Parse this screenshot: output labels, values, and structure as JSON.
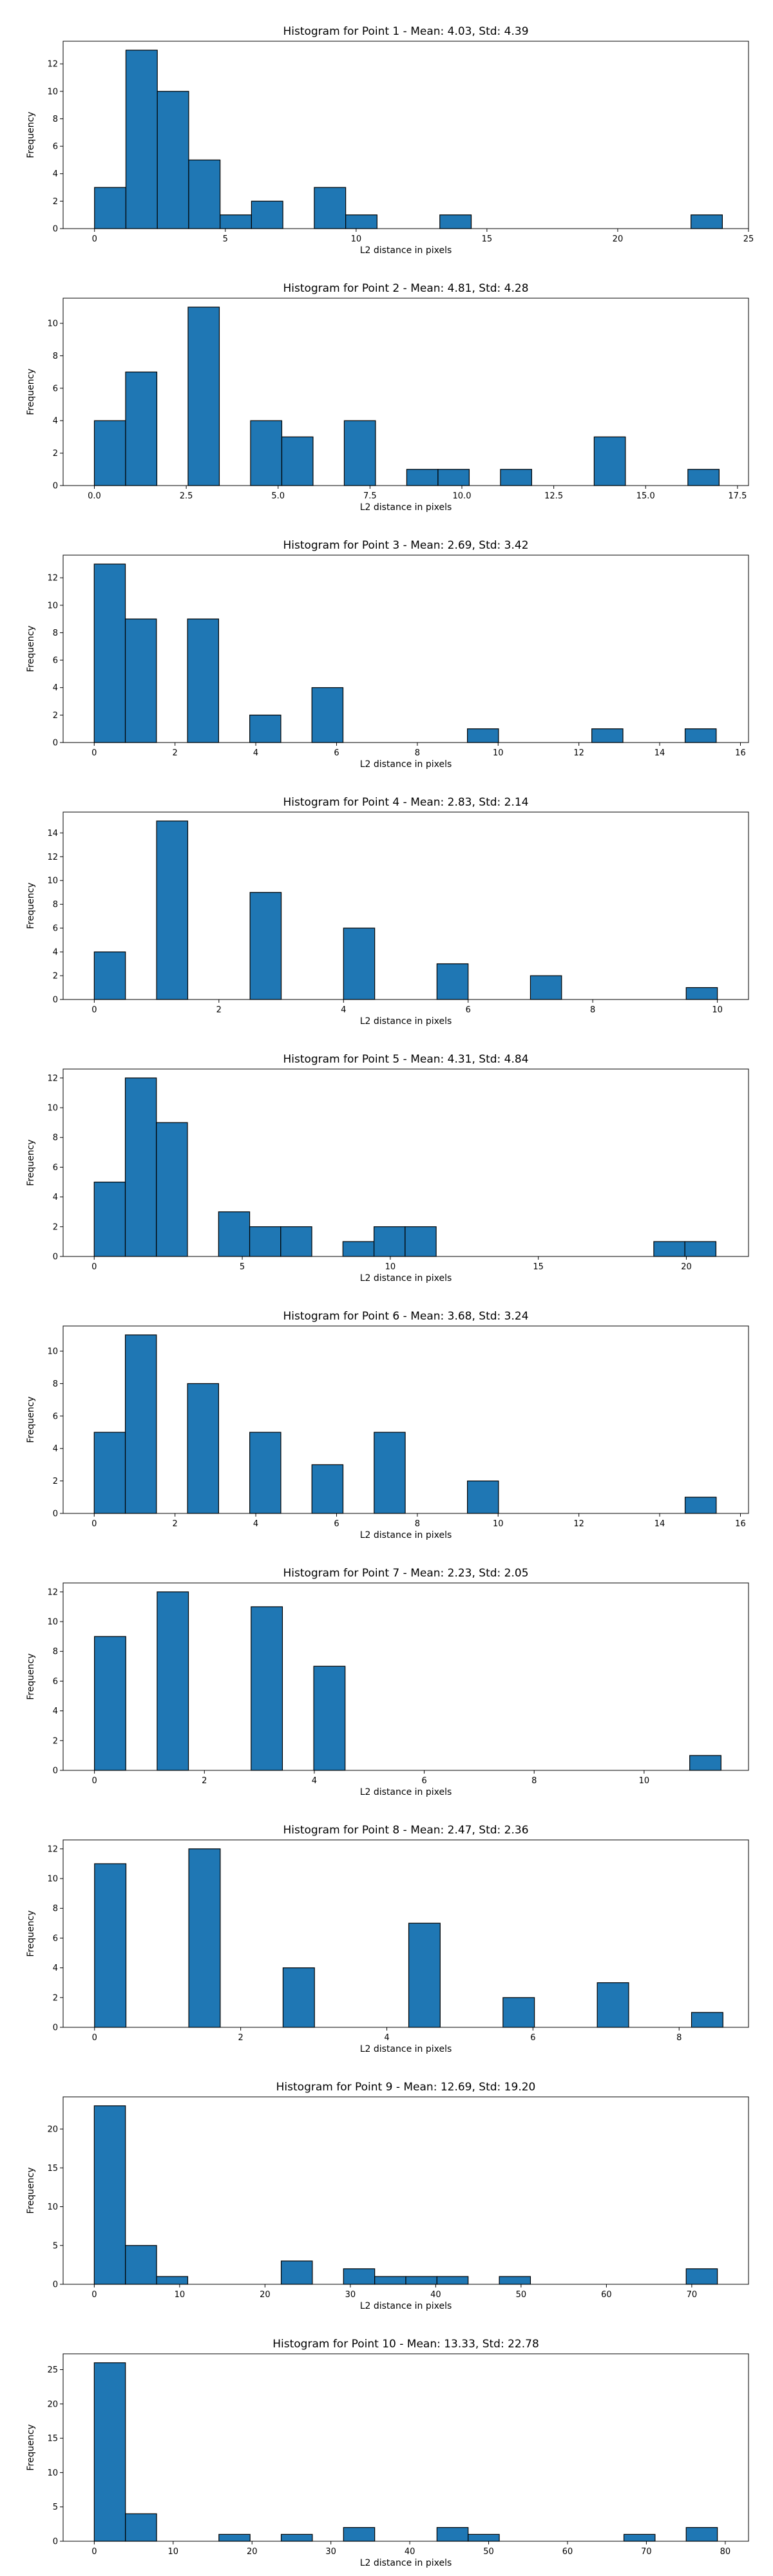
{
  "figure": {
    "background": "#ffffff"
  },
  "style": {
    "bar_fill": "#1f77b4",
    "bar_edge": "#000000"
  },
  "chart_data": [
    {
      "type": "bar",
      "title": "Histogram for Point 1 - Mean: 4.03, Std: 4.39",
      "xlabel": "L2 distance in pixels",
      "ylabel": "Frequency",
      "xlim": [
        -1.2,
        25
      ],
      "ylim": [
        0,
        13.65
      ],
      "xticks": [
        0,
        5,
        10,
        15,
        20,
        25
      ],
      "xtick_labels": [
        "0",
        "5",
        "10",
        "15",
        "20",
        "25"
      ],
      "yticks": [
        0,
        2,
        4,
        6,
        8,
        10,
        12
      ],
      "ytick_labels": [
        "0",
        "2",
        "4",
        "6",
        "8",
        "10",
        "12"
      ],
      "bins": [
        {
          "x0": 0,
          "x1": 1.2,
          "value": 3
        },
        {
          "x0": 1.2,
          "x1": 2.4,
          "value": 13
        },
        {
          "x0": 2.4,
          "x1": 3.6,
          "value": 10
        },
        {
          "x0": 3.6,
          "x1": 4.8,
          "value": 5
        },
        {
          "x0": 4.8,
          "x1": 6.0,
          "value": 1
        },
        {
          "x0": 6.0,
          "x1": 7.2,
          "value": 2
        },
        {
          "x0": 8.4,
          "x1": 9.6,
          "value": 3
        },
        {
          "x0": 9.6,
          "x1": 10.8,
          "value": 1
        },
        {
          "x0": 13.2,
          "x1": 14.4,
          "value": 1
        },
        {
          "x0": 22.8,
          "x1": 24.0,
          "value": 1
        }
      ]
    },
    {
      "type": "bar",
      "title": "Histogram for Point 2 - Mean: 4.81, Std: 4.28",
      "xlabel": "L2 distance in pixels",
      "ylabel": "Frequency",
      "xlim": [
        -0.85,
        17.8
      ],
      "ylim": [
        0,
        11.55
      ],
      "xticks": [
        0,
        2.5,
        5,
        7.5,
        10,
        12.5,
        15,
        17.5
      ],
      "xtick_labels": [
        "0.0",
        "2.5",
        "5.0",
        "7.5",
        "10.0",
        "12.5",
        "15.0",
        "17.5"
      ],
      "yticks": [
        0,
        2,
        4,
        6,
        8,
        10
      ],
      "ytick_labels": [
        "0",
        "2",
        "4",
        "6",
        "8",
        "10"
      ],
      "bins": [
        {
          "x0": 0,
          "x1": 0.85,
          "value": 4
        },
        {
          "x0": 0.85,
          "x1": 1.7,
          "value": 7
        },
        {
          "x0": 2.55,
          "x1": 3.4,
          "value": 11
        },
        {
          "x0": 4.25,
          "x1": 5.1,
          "value": 4
        },
        {
          "x0": 5.1,
          "x1": 5.95,
          "value": 3
        },
        {
          "x0": 6.8,
          "x1": 7.65,
          "value": 4
        },
        {
          "x0": 8.5,
          "x1": 9.35,
          "value": 1
        },
        {
          "x0": 9.35,
          "x1": 10.2,
          "value": 1
        },
        {
          "x0": 11.05,
          "x1": 11.9,
          "value": 1
        },
        {
          "x0": 13.6,
          "x1": 14.45,
          "value": 3
        },
        {
          "x0": 16.15,
          "x1": 17.0,
          "value": 1
        }
      ]
    },
    {
      "type": "bar",
      "title": "Histogram for Point 3 - Mean: 2.69, Std: 3.42",
      "xlabel": "L2 distance in pixels",
      "ylabel": "Frequency",
      "xlim": [
        -0.77,
        16.2
      ],
      "ylim": [
        0,
        13.65
      ],
      "xticks": [
        0,
        2,
        4,
        6,
        8,
        10,
        12,
        14,
        16
      ],
      "xtick_labels": [
        "0",
        "2",
        "4",
        "6",
        "8",
        "10",
        "12",
        "14",
        "16"
      ],
      "yticks": [
        0,
        2,
        4,
        6,
        8,
        10,
        12
      ],
      "ytick_labels": [
        "0",
        "2",
        "4",
        "6",
        "8",
        "10",
        "12"
      ],
      "bins": [
        {
          "x0": 0,
          "x1": 0.77,
          "value": 13
        },
        {
          "x0": 0.77,
          "x1": 1.54,
          "value": 9
        },
        {
          "x0": 2.31,
          "x1": 3.08,
          "value": 9
        },
        {
          "x0": 3.85,
          "x1": 4.62,
          "value": 2
        },
        {
          "x0": 5.39,
          "x1": 6.16,
          "value": 4
        },
        {
          "x0": 9.24,
          "x1": 10.01,
          "value": 1
        },
        {
          "x0": 12.32,
          "x1": 13.09,
          "value": 1
        },
        {
          "x0": 14.63,
          "x1": 15.4,
          "value": 1
        }
      ]
    },
    {
      "type": "bar",
      "title": "Histogram for Point 4 - Mean: 2.83, Std: 2.14",
      "xlabel": "L2 distance in pixels",
      "ylabel": "Frequency",
      "xlim": [
        -0.5,
        10.5
      ],
      "ylim": [
        0,
        15.75
      ],
      "xticks": [
        0,
        2,
        4,
        6,
        8,
        10
      ],
      "xtick_labels": [
        "0",
        "2",
        "4",
        "6",
        "8",
        "10"
      ],
      "yticks": [
        0,
        2,
        4,
        6,
        8,
        10,
        12,
        14
      ],
      "ytick_labels": [
        "0",
        "2",
        "4",
        "6",
        "8",
        "10",
        "12",
        "14"
      ],
      "bins": [
        {
          "x0": 0,
          "x1": 0.5,
          "value": 4
        },
        {
          "x0": 1.0,
          "x1": 1.5,
          "value": 15
        },
        {
          "x0": 2.5,
          "x1": 3.0,
          "value": 9
        },
        {
          "x0": 4.0,
          "x1": 4.5,
          "value": 6
        },
        {
          "x0": 5.5,
          "x1": 6.0,
          "value": 3
        },
        {
          "x0": 7.0,
          "x1": 7.5,
          "value": 2
        },
        {
          "x0": 9.5,
          "x1": 10.0,
          "value": 1
        }
      ]
    },
    {
      "type": "bar",
      "title": "Histogram for Point 5 - Mean: 4.31, Std: 4.84",
      "xlabel": "L2 distance in pixels",
      "ylabel": "Frequency",
      "xlim": [
        -1.05,
        22.1
      ],
      "ylim": [
        0,
        12.6
      ],
      "xticks": [
        0,
        5,
        10,
        15,
        20
      ],
      "xtick_labels": [
        "0",
        "5",
        "10",
        "15",
        "20"
      ],
      "yticks": [
        0,
        2,
        4,
        6,
        8,
        10,
        12
      ],
      "ytick_labels": [
        "0",
        "2",
        "4",
        "6",
        "8",
        "10",
        "12"
      ],
      "bins": [
        {
          "x0": 0,
          "x1": 1.05,
          "value": 5
        },
        {
          "x0": 1.05,
          "x1": 2.1,
          "value": 12
        },
        {
          "x0": 2.1,
          "x1": 3.15,
          "value": 9
        },
        {
          "x0": 4.2,
          "x1": 5.25,
          "value": 3
        },
        {
          "x0": 5.25,
          "x1": 6.3,
          "value": 2
        },
        {
          "x0": 6.3,
          "x1": 7.35,
          "value": 2
        },
        {
          "x0": 8.4,
          "x1": 9.45,
          "value": 1
        },
        {
          "x0": 9.45,
          "x1": 10.5,
          "value": 2
        },
        {
          "x0": 10.5,
          "x1": 11.55,
          "value": 2
        },
        {
          "x0": 18.9,
          "x1": 19.95,
          "value": 1
        },
        {
          "x0": 19.95,
          "x1": 21.0,
          "value": 1
        }
      ]
    },
    {
      "type": "bar",
      "title": "Histogram for Point 6 - Mean: 3.68, Std: 3.24",
      "xlabel": "L2 distance in pixels",
      "ylabel": "Frequency",
      "xlim": [
        -0.77,
        16.2
      ],
      "ylim": [
        0,
        11.55
      ],
      "xticks": [
        0,
        2,
        4,
        6,
        8,
        10,
        12,
        14,
        16
      ],
      "xtick_labels": [
        "0",
        "2",
        "4",
        "6",
        "8",
        "10",
        "12",
        "14",
        "16"
      ],
      "yticks": [
        0,
        2,
        4,
        6,
        8,
        10
      ],
      "ytick_labels": [
        "0",
        "2",
        "4",
        "6",
        "8",
        "10"
      ],
      "bins": [
        {
          "x0": 0,
          "x1": 0.77,
          "value": 5
        },
        {
          "x0": 0.77,
          "x1": 1.54,
          "value": 11
        },
        {
          "x0": 2.31,
          "x1": 3.08,
          "value": 8
        },
        {
          "x0": 3.85,
          "x1": 4.62,
          "value": 5
        },
        {
          "x0": 5.39,
          "x1": 6.16,
          "value": 3
        },
        {
          "x0": 6.93,
          "x1": 7.7,
          "value": 5
        },
        {
          "x0": 9.24,
          "x1": 10.01,
          "value": 2
        },
        {
          "x0": 14.63,
          "x1": 15.4,
          "value": 1
        }
      ]
    },
    {
      "type": "bar",
      "title": "Histogram for Point 7 - Mean: 2.23, Std: 2.05",
      "xlabel": "L2 distance in pixels",
      "ylabel": "Frequency",
      "xlim": [
        -0.57,
        11.9
      ],
      "ylim": [
        0,
        12.6
      ],
      "xticks": [
        0,
        2,
        4,
        6,
        8,
        10
      ],
      "xtick_labels": [
        "0",
        "2",
        "4",
        "6",
        "8",
        "10"
      ],
      "yticks": [
        0,
        2,
        4,
        6,
        8,
        10,
        12
      ],
      "ytick_labels": [
        "0",
        "2",
        "4",
        "6",
        "8",
        "10",
        "12"
      ],
      "bins": [
        {
          "x0": 0,
          "x1": 0.57,
          "value": 9
        },
        {
          "x0": 1.14,
          "x1": 1.71,
          "value": 12
        },
        {
          "x0": 2.85,
          "x1": 3.42,
          "value": 11
        },
        {
          "x0": 3.99,
          "x1": 4.56,
          "value": 7
        },
        {
          "x0": 10.83,
          "x1": 11.4,
          "value": 1
        }
      ]
    },
    {
      "type": "bar",
      "title": "Histogram for Point 8 - Mean: 2.47, Std: 2.36",
      "xlabel": "L2 distance in pixels",
      "ylabel": "Frequency",
      "xlim": [
        -0.43,
        8.95
      ],
      "ylim": [
        0,
        12.6
      ],
      "xticks": [
        0,
        2,
        4,
        6,
        8
      ],
      "xtick_labels": [
        "0",
        "2",
        "4",
        "6",
        "8"
      ],
      "yticks": [
        0,
        2,
        4,
        6,
        8,
        10,
        12
      ],
      "ytick_labels": [
        "0",
        "2",
        "4",
        "6",
        "8",
        "10",
        "12"
      ],
      "bins": [
        {
          "x0": 0,
          "x1": 0.43,
          "value": 11
        },
        {
          "x0": 1.29,
          "x1": 1.72,
          "value": 12
        },
        {
          "x0": 2.58,
          "x1": 3.01,
          "value": 4
        },
        {
          "x0": 4.3,
          "x1": 4.73,
          "value": 7
        },
        {
          "x0": 5.59,
          "x1": 6.02,
          "value": 2
        },
        {
          "x0": 6.88,
          "x1": 7.31,
          "value": 3
        },
        {
          "x0": 8.17,
          "x1": 8.6,
          "value": 1
        }
      ]
    },
    {
      "type": "bar",
      "title": "Histogram for Point 9 - Mean: 12.69, Std: 19.20",
      "xlabel": "L2 distance in pixels",
      "ylabel": "Frequency",
      "xlim": [
        -3.65,
        76.65
      ],
      "ylim": [
        0,
        24.15
      ],
      "xticks": [
        0,
        10,
        20,
        30,
        40,
        50,
        60,
        70
      ],
      "xtick_labels": [
        "0",
        "10",
        "20",
        "30",
        "40",
        "50",
        "60",
        "70"
      ],
      "yticks": [
        0,
        5,
        10,
        15,
        20
      ],
      "ytick_labels": [
        "0",
        "5",
        "10",
        "15",
        "20"
      ],
      "bins": [
        {
          "x0": 0,
          "x1": 3.65,
          "value": 23
        },
        {
          "x0": 3.65,
          "x1": 7.3,
          "value": 5
        },
        {
          "x0": 7.3,
          "x1": 10.95,
          "value": 1
        },
        {
          "x0": 21.9,
          "x1": 25.55,
          "value": 3
        },
        {
          "x0": 29.2,
          "x1": 32.85,
          "value": 2
        },
        {
          "x0": 32.85,
          "x1": 36.5,
          "value": 1
        },
        {
          "x0": 36.5,
          "x1": 40.15,
          "value": 1
        },
        {
          "x0": 40.15,
          "x1": 43.8,
          "value": 1
        },
        {
          "x0": 47.45,
          "x1": 51.1,
          "value": 1
        },
        {
          "x0": 69.35,
          "x1": 73.0,
          "value": 2
        }
      ]
    },
    {
      "type": "bar",
      "title": "Histogram for Point 10 - Mean: 13.33, Std: 22.78",
      "xlabel": "L2 distance in pixels",
      "ylabel": "Frequency",
      "xlim": [
        -3.95,
        82.95
      ],
      "ylim": [
        0,
        27.3
      ],
      "xticks": [
        0,
        10,
        20,
        30,
        40,
        50,
        60,
        70,
        80
      ],
      "xtick_labels": [
        "0",
        "10",
        "20",
        "30",
        "40",
        "50",
        "60",
        "70",
        "80"
      ],
      "yticks": [
        0,
        5,
        10,
        15,
        20,
        25
      ],
      "ytick_labels": [
        "0",
        "5",
        "10",
        "15",
        "20",
        "25"
      ],
      "bins": [
        {
          "x0": 0,
          "x1": 3.95,
          "value": 26
        },
        {
          "x0": 3.95,
          "x1": 7.9,
          "value": 4
        },
        {
          "x0": 15.8,
          "x1": 19.75,
          "value": 1
        },
        {
          "x0": 23.7,
          "x1": 27.65,
          "value": 1
        },
        {
          "x0": 31.6,
          "x1": 35.55,
          "value": 2
        },
        {
          "x0": 43.45,
          "x1": 47.4,
          "value": 2
        },
        {
          "x0": 47.4,
          "x1": 51.35,
          "value": 1
        },
        {
          "x0": 67.15,
          "x1": 71.1,
          "value": 1
        },
        {
          "x0": 75.05,
          "x1": 79.0,
          "value": 2
        }
      ]
    }
  ]
}
